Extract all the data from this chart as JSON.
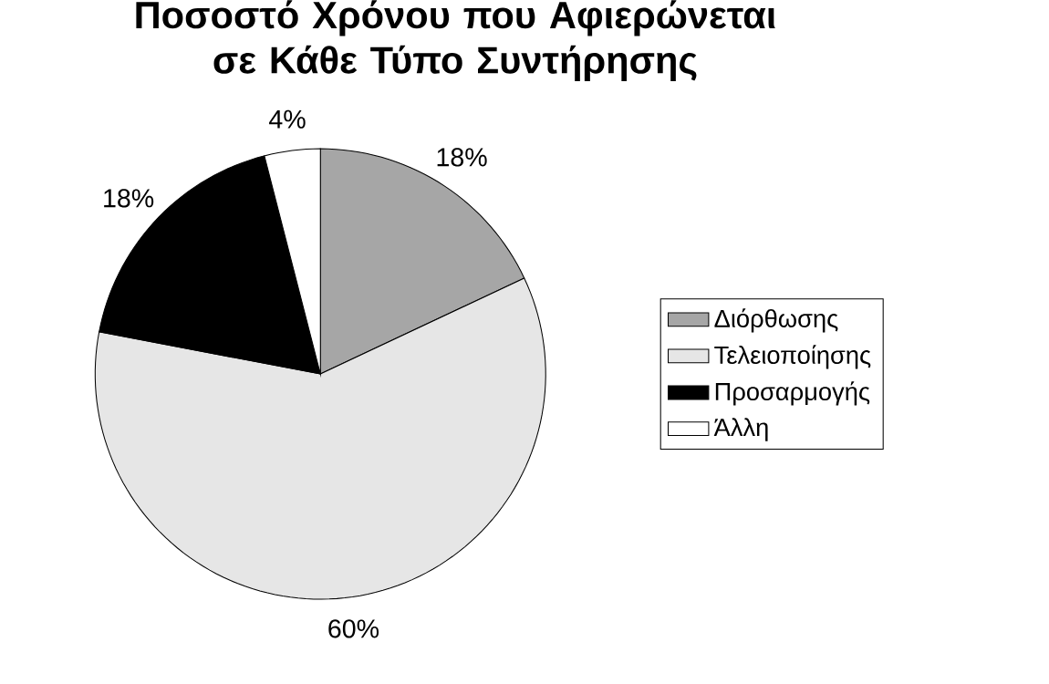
{
  "chart_data": {
    "type": "pie",
    "title": "Ποσοστό Χρόνου που Αφιερώνεται σε Κάθε Τύπο Συντήρησης",
    "categories": [
      "Διόρθωσης",
      "Τελειοποίησης",
      "Προσαρμογής",
      "Άλλη"
    ],
    "values": [
      18,
      60,
      18,
      4
    ],
    "value_labels": [
      "18%",
      "60%",
      "18%",
      "4%"
    ],
    "colors": [
      "#a6a6a6",
      "#e6e6e6",
      "#000000",
      "#ffffff"
    ],
    "legend": "right"
  }
}
